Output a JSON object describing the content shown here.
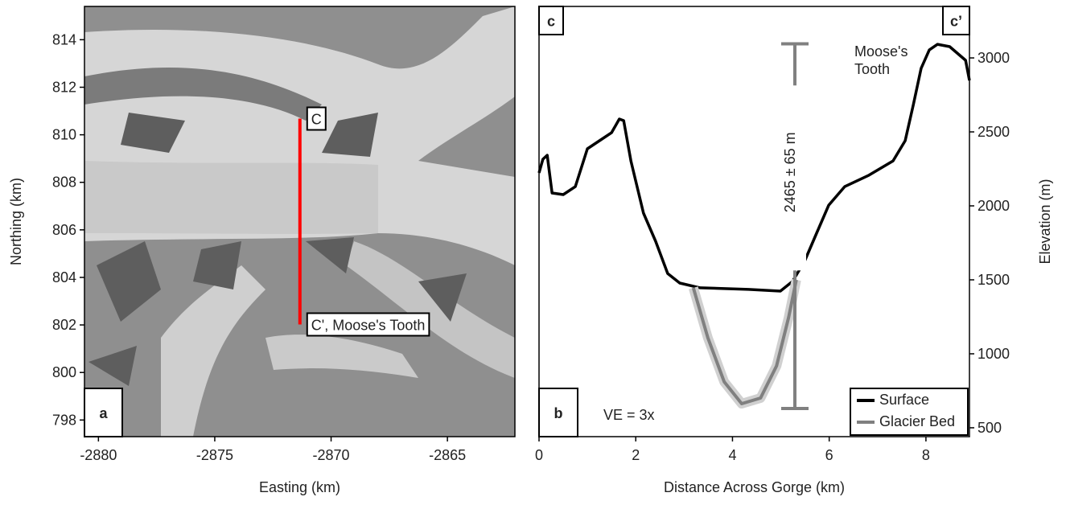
{
  "chart_data": [
    {
      "type": "map",
      "x_label": "Easting (km)",
      "y_label": "Northing (km)",
      "panel_label": "a",
      "xlim": [
        -2880.6,
        -2862.1
      ],
      "ylim": [
        797.3,
        815.4
      ],
      "xticks": [
        -2880,
        -2875,
        -2870,
        -2865
      ],
      "yticks": [
        798,
        800,
        802,
        804,
        806,
        808,
        810,
        812,
        814
      ],
      "transect": {
        "color": "#ff0000",
        "x": [
          -2871.34,
          -2871.34
        ],
        "y": [
          810.68,
          802.02
        ]
      },
      "point_labels": [
        "C",
        "C', Moose's Tooth"
      ]
    },
    {
      "type": "line",
      "x_label": "Distance Across Gorge (km)",
      "y_label": "Elevation (m)",
      "panel_label": "b",
      "corner_labels": [
        "c",
        "c’"
      ],
      "peak_label": "Moose's Tooth",
      "note": "VE = 3x",
      "xlim": [
        0,
        8.9
      ],
      "ylim": [
        440,
        3348
      ],
      "xticks": [
        0,
        2,
        4,
        6,
        8
      ],
      "yticks": [
        500,
        1000,
        1500,
        2000,
        2500,
        3000
      ],
      "legend": "lower right",
      "series": [
        {
          "name": "Surface",
          "color": "#000000",
          "x": [
            0,
            0.08,
            0.17,
            0.27,
            0.5,
            0.75,
            1.0,
            1.25,
            1.5,
            1.66,
            1.75,
            1.9,
            2.16,
            2.41,
            2.66,
            2.91,
            3.33,
            4.33,
            4.99,
            5.24,
            5.49,
            5.74,
            5.99,
            6.32,
            6.82,
            7.32,
            7.57,
            7.74,
            7.9,
            8.07,
            8.24,
            8.49,
            8.82,
            8.9
          ],
          "values": [
            2223,
            2315,
            2342,
            2087,
            2076,
            2130,
            2386,
            2440,
            2495,
            2587,
            2576,
            2304,
            1951,
            1761,
            1543,
            1478,
            1446,
            1435,
            1424,
            1489,
            1625,
            1815,
            2005,
            2130,
            2207,
            2304,
            2440,
            2685,
            2929,
            3054,
            3092,
            3076,
            2984,
            2848
          ]
        },
        {
          "name": "Glacier Bed",
          "color": "#808080",
          "x": [
            3.19,
            3.49,
            3.83,
            4.19,
            4.58,
            4.91,
            5.16,
            5.32
          ],
          "values": [
            1446,
            1109,
            810,
            663,
            701,
            918,
            1245,
            1500
          ]
        }
      ],
      "range_bar": {
        "x": 5.29,
        "low": 630,
        "high": 3095,
        "label": "2465 ± 65 m",
        "color": "#808080"
      }
    }
  ]
}
